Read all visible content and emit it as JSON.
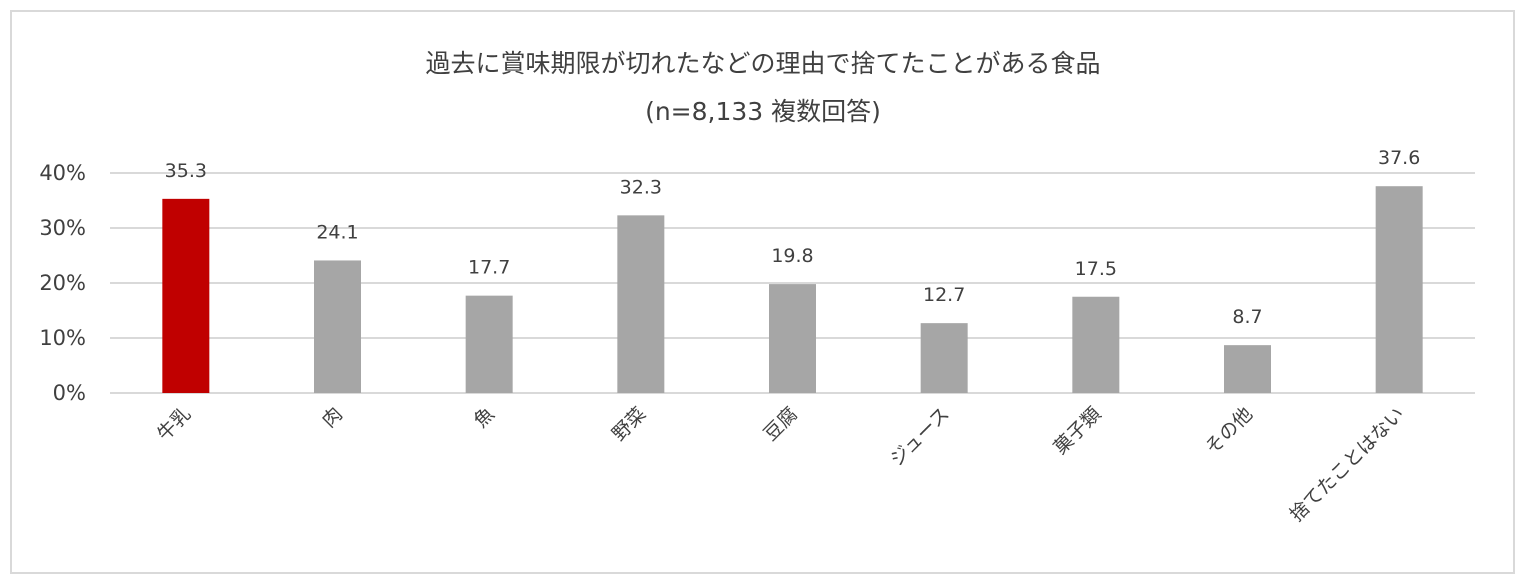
{
  "chart_data": {
    "type": "bar",
    "title": "過去に賞味期限が切れたなどの理由で捨てたことがある食品",
    "subtitle": "(n=8,133 複数回答)",
    "xlabel": "",
    "ylabel": "",
    "categories": [
      "牛乳",
      "肉",
      "魚",
      "野菜",
      "豆腐",
      "ジュース",
      "菓子類",
      "その他",
      "捨てたことはない"
    ],
    "values": [
      35.3,
      24.1,
      17.7,
      32.3,
      19.8,
      12.7,
      17.5,
      8.7,
      37.6
    ],
    "data_labels": [
      "35.3",
      "24.1",
      "17.7",
      "32.3",
      "19.8",
      "12.7",
      "17.5",
      "8.7",
      "37.6"
    ],
    "ylim": [
      0,
      40
    ],
    "yticks": [
      0,
      10,
      20,
      30,
      40
    ],
    "ytick_labels": [
      "0%",
      "10%",
      "20%",
      "30%",
      "40%"
    ],
    "grid": true,
    "legend": "none",
    "colors": {
      "highlight": "#c00000",
      "bar": "#a6a6a6",
      "grid": "#d9d9d9",
      "text": "#404040"
    },
    "highlight_index": 0
  }
}
